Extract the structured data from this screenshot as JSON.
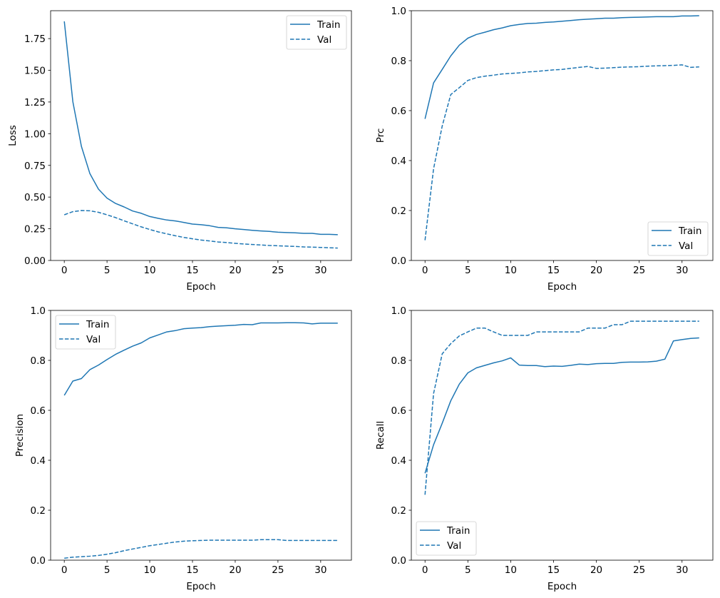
{
  "chart_data": [
    {
      "type": "line",
      "xlabel": "Epoch",
      "ylabel": "Loss",
      "xlim": [
        -1.6,
        33.6
      ],
      "ylim": [
        0,
        1.97
      ],
      "xticks": [
        0,
        5,
        10,
        15,
        20,
        25,
        30
      ],
      "yticks": [
        0,
        0.25,
        0.5,
        0.75,
        1.0,
        1.25,
        1.5,
        1.75
      ],
      "ytick_labels": [
        "0.00",
        "0.25",
        "0.50",
        "0.75",
        "1.00",
        "1.25",
        "1.50",
        "1.75"
      ],
      "legend": "top-right",
      "grid": false,
      "x": [
        0,
        1,
        2,
        3,
        4,
        5,
        6,
        7,
        8,
        9,
        10,
        11,
        12,
        13,
        14,
        15,
        16,
        17,
        18,
        19,
        20,
        21,
        22,
        23,
        24,
        25,
        26,
        27,
        28,
        29,
        30,
        31,
        32
      ],
      "series": [
        {
          "name": "Train",
          "style": "solid",
          "values": [
            1.886,
            1.252,
            0.9,
            0.685,
            0.563,
            0.492,
            0.45,
            0.422,
            0.39,
            0.372,
            0.347,
            0.332,
            0.319,
            0.312,
            0.3,
            0.287,
            0.282,
            0.274,
            0.261,
            0.257,
            0.25,
            0.244,
            0.238,
            0.233,
            0.229,
            0.223,
            0.22,
            0.218,
            0.214,
            0.214,
            0.206,
            0.206,
            0.203
          ]
        },
        {
          "name": "Val",
          "style": "dashed",
          "values": [
            0.36,
            0.385,
            0.394,
            0.392,
            0.38,
            0.36,
            0.338,
            0.313,
            0.289,
            0.265,
            0.244,
            0.225,
            0.21,
            0.195,
            0.182,
            0.171,
            0.161,
            0.154,
            0.146,
            0.141,
            0.135,
            0.13,
            0.126,
            0.122,
            0.118,
            0.116,
            0.113,
            0.111,
            0.107,
            0.105,
            0.103,
            0.1,
            0.098
          ]
        }
      ]
    },
    {
      "type": "line",
      "xlabel": "Epoch",
      "ylabel": "Prc",
      "xlim": [
        -1.6,
        33.6
      ],
      "ylim": [
        0,
        1
      ],
      "xticks": [
        0,
        5,
        10,
        15,
        20,
        25,
        30
      ],
      "yticks": [
        0,
        0.2,
        0.4,
        0.6,
        0.8,
        1.0
      ],
      "ytick_labels": [
        "0.0",
        "0.2",
        "0.4",
        "0.6",
        "0.8",
        "1.0"
      ],
      "legend": "bottom-right",
      "grid": false,
      "x": [
        0,
        1,
        2,
        3,
        4,
        5,
        6,
        7,
        8,
        9,
        10,
        11,
        12,
        13,
        14,
        15,
        16,
        17,
        18,
        19,
        20,
        21,
        22,
        23,
        24,
        25,
        26,
        27,
        28,
        29,
        30,
        31,
        32
      ],
      "series": [
        {
          "name": "Train",
          "style": "solid",
          "values": [
            0.567,
            0.711,
            0.765,
            0.819,
            0.862,
            0.89,
            0.905,
            0.914,
            0.924,
            0.931,
            0.94,
            0.945,
            0.949,
            0.95,
            0.953,
            0.955,
            0.958,
            0.961,
            0.964,
            0.966,
            0.968,
            0.97,
            0.97,
            0.972,
            0.973,
            0.974,
            0.975,
            0.976,
            0.976,
            0.976,
            0.979,
            0.979,
            0.98
          ]
        },
        {
          "name": "Val",
          "style": "dashed",
          "values": [
            0.081,
            0.367,
            0.538,
            0.664,
            0.692,
            0.721,
            0.732,
            0.738,
            0.742,
            0.747,
            0.749,
            0.751,
            0.755,
            0.757,
            0.76,
            0.763,
            0.765,
            0.769,
            0.773,
            0.777,
            0.769,
            0.77,
            0.772,
            0.774,
            0.775,
            0.776,
            0.778,
            0.779,
            0.78,
            0.781,
            0.783,
            0.773,
            0.775
          ]
        }
      ]
    },
    {
      "type": "line",
      "xlabel": "Epoch",
      "ylabel": "Precision",
      "xlim": [
        -1.6,
        33.6
      ],
      "ylim": [
        0,
        1
      ],
      "xticks": [
        0,
        5,
        10,
        15,
        20,
        25,
        30
      ],
      "yticks": [
        0,
        0.2,
        0.4,
        0.6,
        0.8,
        1.0
      ],
      "ytick_labels": [
        "0.0",
        "0.2",
        "0.4",
        "0.6",
        "0.8",
        "1.0"
      ],
      "legend": "top-left",
      "grid": false,
      "x": [
        0,
        1,
        2,
        3,
        4,
        5,
        6,
        7,
        8,
        9,
        10,
        11,
        12,
        13,
        14,
        15,
        16,
        17,
        18,
        19,
        20,
        21,
        22,
        23,
        24,
        25,
        26,
        27,
        28,
        29,
        30,
        31,
        32
      ],
      "series": [
        {
          "name": "Train",
          "style": "solid",
          "values": [
            0.66,
            0.717,
            0.727,
            0.763,
            0.781,
            0.803,
            0.824,
            0.841,
            0.857,
            0.87,
            0.89,
            0.902,
            0.914,
            0.919,
            0.927,
            0.929,
            0.931,
            0.935,
            0.937,
            0.939,
            0.941,
            0.944,
            0.943,
            0.95,
            0.95,
            0.95,
            0.951,
            0.951,
            0.95,
            0.946,
            0.949,
            0.949,
            0.949
          ]
        },
        {
          "name": "Val",
          "style": "dashed",
          "values": [
            0.008,
            0.012,
            0.014,
            0.016,
            0.019,
            0.024,
            0.03,
            0.038,
            0.045,
            0.051,
            0.058,
            0.063,
            0.068,
            0.073,
            0.076,
            0.078,
            0.079,
            0.08,
            0.08,
            0.08,
            0.08,
            0.08,
            0.08,
            0.082,
            0.082,
            0.082,
            0.079,
            0.079,
            0.079,
            0.079,
            0.079,
            0.079,
            0.079
          ]
        }
      ]
    },
    {
      "type": "line",
      "xlabel": "Epoch",
      "ylabel": "Recall",
      "xlim": [
        -1.6,
        33.6
      ],
      "ylim": [
        0,
        1
      ],
      "xticks": [
        0,
        5,
        10,
        15,
        20,
        25,
        30
      ],
      "yticks": [
        0,
        0.2,
        0.4,
        0.6,
        0.8,
        1.0
      ],
      "ytick_labels": [
        "0.0",
        "0.2",
        "0.4",
        "0.6",
        "0.8",
        "1.0"
      ],
      "legend": "bottom-left",
      "grid": false,
      "x": [
        0,
        1,
        2,
        3,
        4,
        5,
        6,
        7,
        8,
        9,
        10,
        11,
        12,
        13,
        14,
        15,
        16,
        17,
        18,
        19,
        20,
        21,
        22,
        23,
        24,
        25,
        26,
        27,
        28,
        29,
        30,
        31,
        32
      ],
      "series": [
        {
          "name": "Train",
          "style": "solid",
          "values": [
            0.348,
            0.462,
            0.548,
            0.638,
            0.705,
            0.75,
            0.77,
            0.78,
            0.79,
            0.798,
            0.81,
            0.781,
            0.779,
            0.779,
            0.775,
            0.777,
            0.776,
            0.78,
            0.785,
            0.783,
            0.787,
            0.788,
            0.788,
            0.792,
            0.793,
            0.793,
            0.794,
            0.797,
            0.805,
            0.878,
            0.883,
            0.888,
            0.89
          ]
        },
        {
          "name": "Val",
          "style": "dashed",
          "values": [
            0.262,
            0.667,
            0.826,
            0.867,
            0.898,
            0.914,
            0.929,
            0.929,
            0.914,
            0.9,
            0.9,
            0.9,
            0.9,
            0.914,
            0.914,
            0.914,
            0.914,
            0.914,
            0.914,
            0.929,
            0.929,
            0.929,
            0.943,
            0.943,
            0.957,
            0.957,
            0.957,
            0.957,
            0.957,
            0.957,
            0.957,
            0.957,
            0.957
          ]
        }
      ]
    }
  ],
  "colors": {
    "line": "#1f77b4",
    "axes": "#000000",
    "legend_border": "#cccccc"
  }
}
